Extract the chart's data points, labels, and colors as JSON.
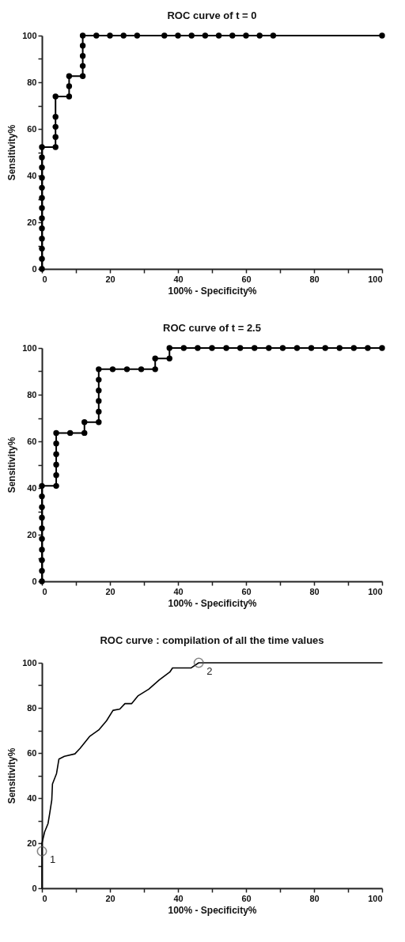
{
  "chart_data": [
    {
      "type": "line",
      "title": "ROC curve of t = 0",
      "xlabel": "100% - Specificity%",
      "ylabel": "Sensitivity%",
      "xlim": [
        0,
        100
      ],
      "ylim": [
        0,
        100
      ],
      "xticks": [
        0,
        {
          "value": 10,
          "label": null
        },
        20,
        {
          "value": 30,
          "label": null
        },
        40,
        {
          "value": 50,
          "label": null
        },
        60,
        {
          "value": 70,
          "label": null
        },
        80,
        {
          "value": 90,
          "label": null
        },
        100
      ],
      "yticks": [
        0,
        {
          "value": 10,
          "label": null
        },
        20,
        {
          "value": 30,
          "label": null
        },
        40,
        {
          "value": 50,
          "label": null
        },
        60,
        {
          "value": 70,
          "label": null
        },
        80,
        {
          "value": 90,
          "label": null
        },
        100
      ],
      "marker": "circle",
      "line_style": "solid",
      "grid": false,
      "series": [
        {
          "color": "#000000",
          "x": [
            0,
            0,
            0,
            0,
            0,
            0,
            0,
            0,
            0,
            0,
            0,
            0,
            0,
            4,
            4,
            4,
            4,
            4,
            8,
            8,
            8,
            12,
            12,
            12,
            12,
            12,
            16,
            20,
            24,
            28,
            36,
            40,
            44,
            48,
            52,
            56,
            60,
            64,
            68,
            100
          ],
          "values": [
            0,
            4.3,
            8.7,
            13,
            17.4,
            21.7,
            26.1,
            30.4,
            34.8,
            39.1,
            43.5,
            47.8,
            52.2,
            52.2,
            56.5,
            60.9,
            65.2,
            73.9,
            73.9,
            78.3,
            82.6,
            82.6,
            87,
            91.3,
            95.7,
            100,
            100,
            100,
            100,
            100,
            100,
            100,
            100,
            100,
            100,
            100,
            100,
            100,
            100,
            100
          ]
        }
      ]
    },
    {
      "type": "line",
      "title": "ROC curve of t = 2.5",
      "xlabel": "100% - Specificity%",
      "ylabel": "Sensitivity%",
      "xlim": [
        0,
        100
      ],
      "ylim": [
        0,
        100
      ],
      "xticks": [
        0,
        {
          "value": 10,
          "label": null
        },
        20,
        {
          "value": 30,
          "label": null
        },
        40,
        {
          "value": 50,
          "label": null
        },
        60,
        {
          "value": 70,
          "label": null
        },
        80,
        {
          "value": 90,
          "label": null
        },
        100
      ],
      "yticks": [
        0,
        {
          "value": 10,
          "label": null
        },
        20,
        {
          "value": 30,
          "label": null
        },
        40,
        {
          "value": 50,
          "label": null
        },
        60,
        {
          "value": 70,
          "label": null
        },
        80,
        {
          "value": 90,
          "label": null
        },
        100
      ],
      "marker": "circle",
      "line_style": "solid",
      "grid": false,
      "series": [
        {
          "color": "#000000",
          "x": [
            0,
            0,
            0,
            0,
            0,
            0,
            0,
            0,
            0,
            0,
            4.2,
            4.2,
            4.2,
            4.2,
            4.2,
            4.2,
            8.3,
            12.5,
            12.5,
            16.7,
            16.7,
            16.7,
            16.7,
            16.7,
            16.7,
            20.8,
            25,
            29.2,
            33.3,
            33.3,
            37.5,
            37.5,
            41.7,
            45.8,
            50,
            54.2,
            58.3,
            62.5,
            66.7,
            70.8,
            75,
            79.2,
            83.3,
            87.5,
            91.7,
            95.8,
            100
          ],
          "values": [
            0,
            4.5,
            9.1,
            13.6,
            18.2,
            22.7,
            27.3,
            31.8,
            36.4,
            40.9,
            40.9,
            45.5,
            50,
            54.5,
            59.1,
            63.6,
            63.6,
            63.6,
            68.2,
            68.2,
            72.7,
            77.3,
            81.8,
            86.4,
            90.9,
            90.9,
            90.9,
            90.9,
            90.9,
            95.5,
            95.5,
            100,
            100,
            100,
            100,
            100,
            100,
            100,
            100,
            100,
            100,
            100,
            100,
            100,
            100,
            100,
            100
          ]
        }
      ]
    },
    {
      "type": "line",
      "title": "ROC curve : compilation of all the time values",
      "xlabel": "100% - Specificity%",
      "ylabel": "Sensitivity%",
      "xlim": [
        0,
        100
      ],
      "ylim": [
        0,
        100
      ],
      "xticks": [
        0,
        {
          "value": 10,
          "label": null
        },
        20,
        {
          "value": 30,
          "label": null
        },
        40,
        {
          "value": 50,
          "label": null
        },
        60,
        {
          "value": 70,
          "label": null
        },
        80,
        {
          "value": 90,
          "label": null
        },
        100
      ],
      "yticks": [
        0,
        {
          "value": 10,
          "label": null
        },
        20,
        {
          "value": 30,
          "label": null
        },
        40,
        {
          "value": 50,
          "label": null
        },
        60,
        {
          "value": 70,
          "label": null
        },
        80,
        {
          "value": 90,
          "label": null
        },
        100
      ],
      "line_style": "solid",
      "grid": false,
      "series": [
        {
          "color": "#000000",
          "x": [
            0,
            0,
            0.8,
            1.8,
            2.3,
            2.9,
            3.1,
            4.3,
            5,
            6.6,
            9.7,
            11.2,
            14,
            16.7,
            19,
            20.9,
            22.9,
            24.4,
            26.4,
            28.3,
            31.4,
            34.5,
            37.6,
            38.4,
            43.8,
            46.1,
            100
          ],
          "values": [
            0,
            19.9,
            25,
            28.7,
            33.3,
            39.2,
            46.2,
            50.9,
            57.3,
            58.5,
            59.6,
            62,
            67.3,
            70.2,
            74.3,
            78.9,
            79.5,
            81.9,
            81.9,
            85.4,
            88.3,
            92.4,
            95.9,
            97.7,
            97.7,
            100,
            100
          ]
        }
      ],
      "annotations": [
        {
          "text": "1",
          "x": 0,
          "y": 16.4
        },
        {
          "text": "2",
          "x": 46.1,
          "y": 100
        }
      ]
    }
  ]
}
